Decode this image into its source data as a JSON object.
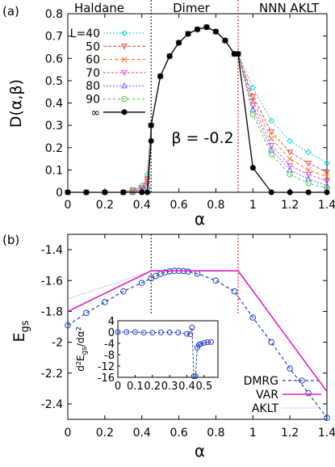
{
  "chart_data": [
    {
      "panel_label": "(a)",
      "type": "line",
      "xlabel": "α",
      "ylabel": "D(α,β)",
      "xlim": [
        0,
        1.4
      ],
      "ylim": [
        0,
        0.8
      ],
      "xticks": [
        0,
        0.2,
        0.4,
        0.6,
        0.8,
        1.0,
        1.2,
        1.4
      ],
      "xtick_labels": [
        "0",
        "0.2",
        "0.4",
        "0.6",
        "0.8",
        "1",
        "1.2",
        "1.4"
      ],
      "yticks": [
        0,
        0.1,
        0.2,
        0.3,
        0.4,
        0.5,
        0.6,
        0.7,
        0.8
      ],
      "ytick_labels": [
        "0",
        "0.1",
        "0.2",
        "0.3",
        "0.4",
        "0.5",
        "0.6",
        "0.7",
        "0.8"
      ],
      "grid": false,
      "legend_position": "top-left",
      "phase_labels": [
        "Haldane",
        "Dimer",
        "NNN AKLT"
      ],
      "vlines": [
        {
          "x": 0.45,
          "color": "#000000",
          "style": "dotted"
        },
        {
          "x": 0.92,
          "color": "#cc0000",
          "style": "dotted"
        }
      ],
      "annotation": "β = -0.2",
      "x_common": [
        0.45,
        0.5,
        0.55,
        0.6,
        0.65,
        0.7,
        0.75,
        0.8,
        0.85,
        0.9
      ],
      "y_common": [
        0.3,
        0.52,
        0.61,
        0.67,
        0.71,
        0.73,
        0.74,
        0.72,
        0.68,
        0.62
      ],
      "series": [
        {
          "name": "L=40",
          "color": "#00d0d0",
          "marker": "diamond",
          "dash": "2,2",
          "tail_x": [
            0.92,
            1.0,
            1.1,
            1.2,
            1.3,
            1.4
          ],
          "tail_y": [
            0.62,
            0.47,
            0.32,
            0.23,
            0.18,
            0.13
          ],
          "head_x": [
            0,
            0.1,
            0.2,
            0.3,
            0.35,
            0.4,
            0.43
          ],
          "head_y": [
            0,
            0,
            0,
            0,
            0.01,
            0.03,
            0.08
          ]
        },
        {
          "name": "50",
          "color": "#e04040",
          "marker": "triangle-down",
          "dash": "4,2",
          "tail_x": [
            0.92,
            1.0,
            1.1,
            1.2,
            1.3,
            1.4
          ],
          "tail_y": [
            0.62,
            0.43,
            0.27,
            0.18,
            0.13,
            0.09
          ],
          "head_x": [
            0,
            0.1,
            0.2,
            0.3,
            0.35,
            0.4,
            0.43
          ],
          "head_y": [
            0,
            0,
            0,
            0,
            0.01,
            0.02,
            0.06
          ]
        },
        {
          "name": "60",
          "color": "#ff6600",
          "marker": "x",
          "dash": "4,3",
          "tail_x": [
            0.92,
            1.0,
            1.1,
            1.2,
            1.3,
            1.4
          ],
          "tail_y": [
            0.62,
            0.41,
            0.24,
            0.15,
            0.1,
            0.07
          ],
          "head_x": [
            0,
            0.1,
            0.2,
            0.3,
            0.35,
            0.4,
            0.43
          ],
          "head_y": [
            0,
            0,
            0,
            0,
            0,
            0.02,
            0.05
          ]
        },
        {
          "name": "70",
          "color": "#e040e0",
          "marker": "triangle-down",
          "dash": "3,2",
          "tail_x": [
            0.92,
            1.0,
            1.1,
            1.2,
            1.3,
            1.4
          ],
          "tail_y": [
            0.62,
            0.39,
            0.21,
            0.12,
            0.08,
            0.05
          ],
          "head_x": [
            0,
            0.1,
            0.2,
            0.3,
            0.35,
            0.4,
            0.43
          ],
          "head_y": [
            0,
            0,
            0,
            0,
            0,
            0.01,
            0.04
          ]
        },
        {
          "name": "80",
          "color": "#6060ff",
          "marker": "triangle-up",
          "dash": "2,2",
          "tail_x": [
            0.92,
            1.0,
            1.1,
            1.2,
            1.3,
            1.4
          ],
          "tail_y": [
            0.62,
            0.37,
            0.19,
            0.1,
            0.06,
            0.03
          ],
          "head_x": [
            0,
            0.1,
            0.2,
            0.3,
            0.35,
            0.4,
            0.43
          ],
          "head_y": [
            0,
            0,
            0,
            0,
            0,
            0.01,
            0.03
          ]
        },
        {
          "name": "90",
          "color": "#40c040",
          "marker": "circle",
          "dash": "3,3",
          "tail_x": [
            0.92,
            1.0,
            1.1,
            1.2,
            1.3,
            1.4
          ],
          "tail_y": [
            0.62,
            0.35,
            0.17,
            0.08,
            0.04,
            0.02
          ],
          "head_x": [
            0,
            0.1,
            0.2,
            0.3,
            0.35,
            0.4,
            0.43
          ],
          "head_y": [
            0,
            0,
            0,
            0,
            0,
            0,
            0.02
          ]
        },
        {
          "name": "∞",
          "color": "#000000",
          "marker": "circle-filled",
          "dash": "",
          "tail_x": [
            0.92,
            1.0,
            1.1,
            1.2,
            1.3,
            1.4
          ],
          "tail_y": [
            0.62,
            0.11,
            0,
            0,
            0,
            0
          ],
          "head_x": [
            0,
            0.1,
            0.2,
            0.3,
            0.4,
            0.43,
            0.45
          ],
          "head_y": [
            0,
            0,
            0,
            0,
            0,
            0,
            0.23
          ]
        }
      ]
    },
    {
      "panel_label": "(b)",
      "type": "line",
      "xlabel": "α",
      "ylabel": "E_gs",
      "xlim": [
        0,
        1.4
      ],
      "ylim": [
        -2.5,
        -1.3
      ],
      "xticks": [
        0,
        0.2,
        0.4,
        0.6,
        0.8,
        1.0,
        1.2,
        1.4
      ],
      "xtick_labels": [
        "0",
        "0.2",
        "0.4",
        "0.6",
        "0.8",
        "1",
        "1.2",
        "1.4"
      ],
      "yticks": [
        -2.4,
        -2.2,
        -2.0,
        -1.8,
        -1.6,
        -1.4
      ],
      "ytick_labels": [
        "-2.4",
        "-2.2",
        "-2",
        "-1.8",
        "-1.6",
        "-1.4"
      ],
      "grid": false,
      "legend_position": "bottom-right",
      "vlines": [
        {
          "x": 0.45,
          "color": "#000000",
          "style": "dotted"
        },
        {
          "x": 0.92,
          "color": "#cc0000",
          "style": "dotted"
        }
      ],
      "series": [
        {
          "name": "DMRG",
          "color": "#2040c0",
          "style": "dashed-markers",
          "x": [
            0,
            0.1,
            0.2,
            0.3,
            0.4,
            0.45,
            0.475,
            0.5,
            0.525,
            0.55,
            0.575,
            0.6,
            0.625,
            0.65,
            0.7,
            0.8,
            0.9,
            1.0,
            1.1,
            1.2,
            1.3,
            1.4
          ],
          "y": [
            -1.89,
            -1.81,
            -1.74,
            -1.67,
            -1.615,
            -1.585,
            -1.57,
            -1.557,
            -1.547,
            -1.54,
            -1.537,
            -1.537,
            -1.538,
            -1.542,
            -1.555,
            -1.6,
            -1.67,
            -1.84,
            -2.0,
            -2.17,
            -2.33,
            -2.49
          ]
        },
        {
          "name": "VAR",
          "color": "#e020c0",
          "style": "solid",
          "x": [
            0,
            0.45,
            0.92,
            1.4
          ],
          "y": [
            -1.8,
            -1.537,
            -1.537,
            -2.32
          ]
        },
        {
          "name": "AKLT",
          "color": "#8080e0",
          "style": "dotted",
          "x": [
            0,
            0.45
          ],
          "y": [
            -1.72,
            -1.537
          ]
        }
      ],
      "inset": {
        "ylabel": "d²E_gs/dα²",
        "xlim": [
          0,
          0.58
        ],
        "ylim": [
          -16,
          4
        ],
        "xticks": [
          0,
          0.1,
          0.2,
          0.3,
          0.4,
          0.5
        ],
        "xtick_labels": [
          "0",
          "0.1",
          "0.2",
          "0.3",
          "0.4",
          "0.5"
        ],
        "yticks": [
          -16,
          -12,
          -8,
          -4,
          0,
          4
        ],
        "ytick_labels": [
          "-16",
          "-12",
          "-8",
          "-4",
          "0",
          "4"
        ],
        "x": [
          0,
          0.05,
          0.1,
          0.15,
          0.2,
          0.25,
          0.3,
          0.35,
          0.4,
          0.42,
          0.43,
          0.44,
          0.45,
          0.46,
          0.47,
          0.48,
          0.5,
          0.52,
          0.54
        ],
        "y": [
          0,
          0,
          0,
          -0.2,
          -0.2,
          -0.1,
          -0.1,
          -0.2,
          -0.6,
          -0.8,
          1.6,
          -15.6,
          -15.6,
          -5.5,
          -4.5,
          -4.2,
          -3.8,
          -3.6,
          -3.5
        ]
      }
    }
  ]
}
